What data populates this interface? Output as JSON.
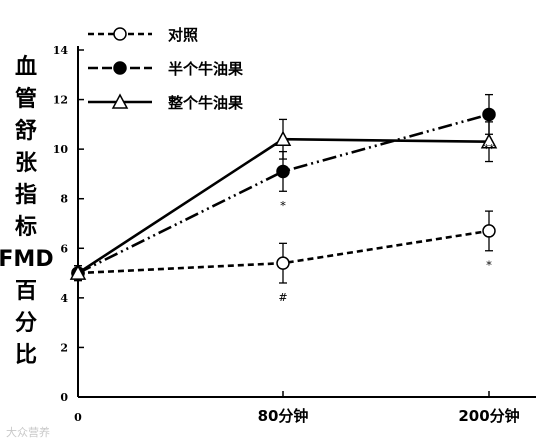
{
  "chart_data": {
    "type": "line",
    "title": "",
    "ylabel": "血管舒张指标FMD百分比",
    "xlabel": "",
    "categories": [
      "0",
      "80分钟",
      "200分钟"
    ],
    "ylim": [
      0,
      14
    ],
    "yticks": [
      "0",
      "2",
      "4",
      "6",
      "8",
      "10",
      "12",
      "14"
    ],
    "legend_position": "top-left",
    "grid": false,
    "series": [
      {
        "name": "对照",
        "marker": "open-circle",
        "linestyle": "dashed",
        "values": [
          5.0,
          5.4,
          6.7
        ],
        "errors": [
          0.3,
          0.8,
          0.8
        ],
        "annotations": [
          "",
          "#",
          "*"
        ]
      },
      {
        "name": "半个牛油果",
        "marker": "filled-circle",
        "linestyle": "dash-dot-dot",
        "values": [
          5.0,
          9.1,
          11.4
        ],
        "errors": [
          0.3,
          0.8,
          0.8
        ],
        "annotations": [
          "",
          "*",
          "**"
        ]
      },
      {
        "name": "整个牛油果",
        "marker": "open-triangle",
        "linestyle": "solid",
        "values": [
          5.0,
          10.4,
          10.3
        ],
        "errors": [
          0.3,
          0.8,
          0.8
        ],
        "annotations": [
          "",
          "",
          ""
        ]
      }
    ]
  },
  "watermark": "大众营养"
}
